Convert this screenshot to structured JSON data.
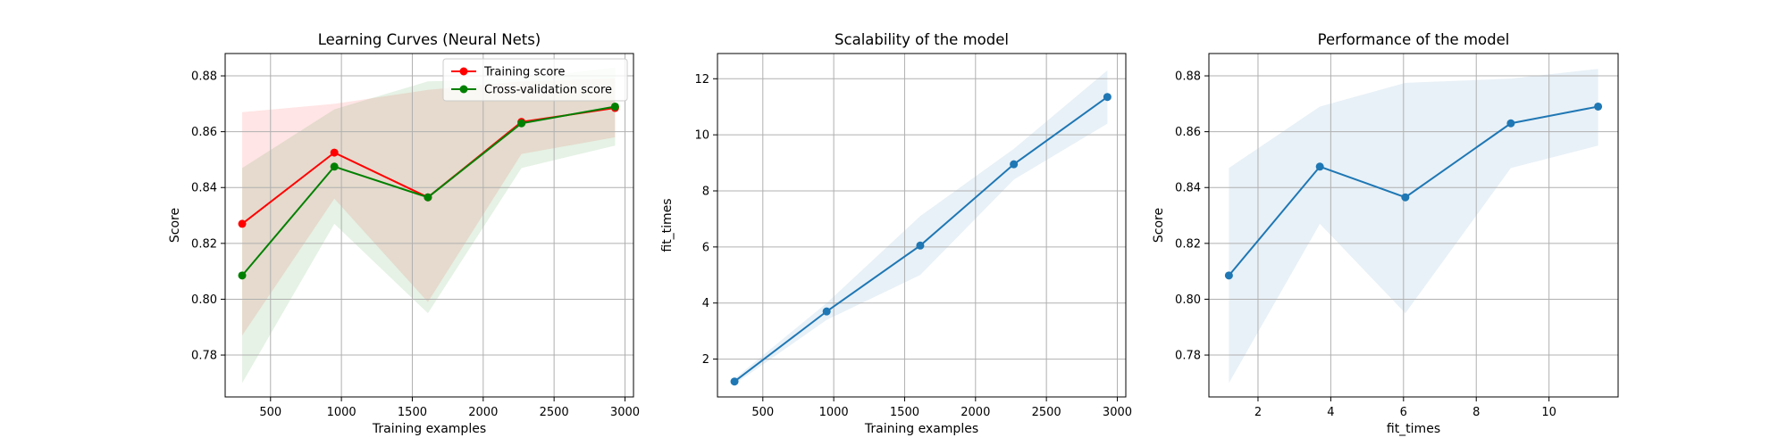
{
  "chart_data": [
    {
      "type": "line",
      "title": "Learning Curves (Neural Nets)",
      "xlabel": "Training examples",
      "ylabel": "Score",
      "xlim": [
        180,
        3060
      ],
      "ylim": [
        0.765,
        0.888
      ],
      "xticks": [
        500,
        1000,
        1500,
        2000,
        2500,
        3000
      ],
      "yticks": [
        0.78,
        0.8,
        0.82,
        0.84,
        0.86,
        0.88
      ],
      "ytick_decimals": 2,
      "grid": true,
      "legend_position": "top-right",
      "x": [
        300,
        950,
        1610,
        2270,
        2930
      ],
      "series": [
        {
          "name": "Training score",
          "color": "#ff0000",
          "values": [
            0.827,
            0.8525,
            0.8365,
            0.8635,
            0.8685
          ],
          "band_lower": [
            0.787,
            0.836,
            0.799,
            0.852,
            0.858
          ],
          "band_upper": [
            0.867,
            0.87,
            0.875,
            0.878,
            0.879
          ]
        },
        {
          "name": "Cross-validation score",
          "color": "#008000",
          "values": [
            0.8085,
            0.8475,
            0.8365,
            0.863,
            0.869
          ],
          "band_lower": [
            0.77,
            0.827,
            0.795,
            0.847,
            0.855
          ],
          "band_upper": [
            0.847,
            0.868,
            0.878,
            0.879,
            0.883
          ]
        }
      ]
    },
    {
      "type": "line",
      "title": "Scalability of the model",
      "xlabel": "Training examples",
      "ylabel": "fit_times",
      "xlim": [
        180,
        3060
      ],
      "ylim": [
        0.65,
        12.9
      ],
      "xticks": [
        500,
        1000,
        1500,
        2000,
        2500,
        3000
      ],
      "yticks": [
        2,
        4,
        6,
        8,
        10,
        12
      ],
      "ytick_decimals": 0,
      "grid": true,
      "x": [
        300,
        950,
        1610,
        2270,
        2930
      ],
      "series": [
        {
          "color": "#1f77b4",
          "values": [
            1.2,
            3.7,
            6.05,
            8.95,
            11.35
          ],
          "band_lower": [
            1.1,
            3.4,
            5.0,
            8.4,
            10.4
          ],
          "band_upper": [
            1.3,
            4.0,
            7.1,
            9.5,
            12.3
          ]
        }
      ]
    },
    {
      "type": "line",
      "title": "Performance of the model",
      "xlabel": "fit_times",
      "ylabel": "Score",
      "xlim": [
        0.65,
        11.9
      ],
      "ylim": [
        0.765,
        0.888
      ],
      "xticks": [
        2,
        4,
        6,
        8,
        10
      ],
      "yticks": [
        0.78,
        0.8,
        0.82,
        0.84,
        0.86,
        0.88
      ],
      "ytick_decimals": 2,
      "grid": true,
      "x": [
        1.2,
        3.7,
        6.05,
        8.95,
        11.35
      ],
      "series": [
        {
          "color": "#1f77b4",
          "values": [
            0.8085,
            0.8475,
            0.8365,
            0.863,
            0.869
          ],
          "band_lower": [
            0.77,
            0.827,
            0.795,
            0.847,
            0.855
          ],
          "band_upper": [
            0.847,
            0.869,
            0.8775,
            0.879,
            0.8825
          ]
        }
      ]
    }
  ]
}
